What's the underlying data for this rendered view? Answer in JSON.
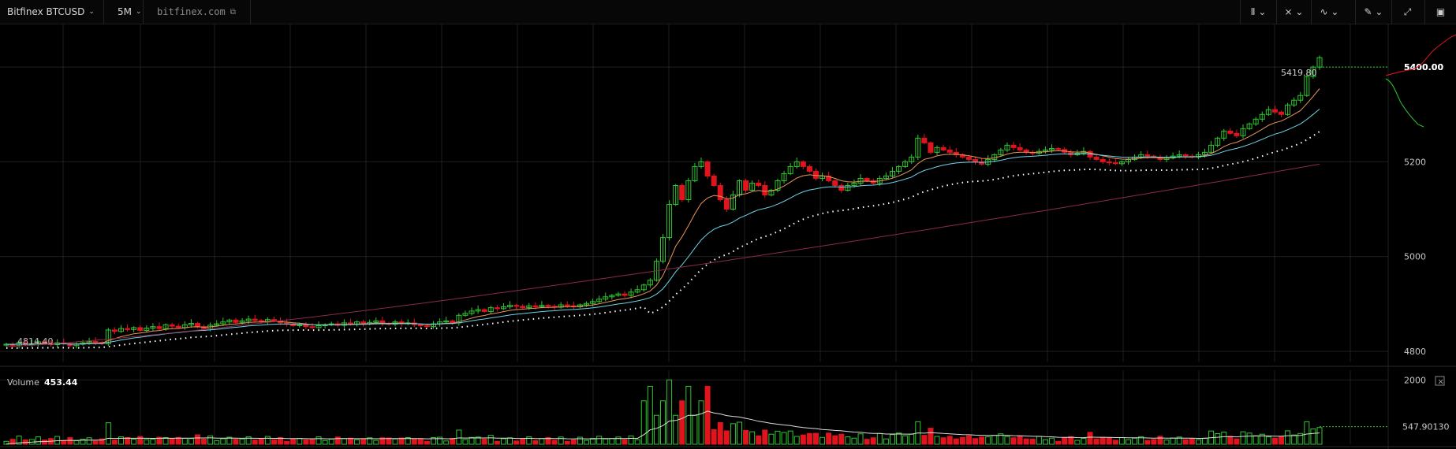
{
  "toolbar": {
    "symbol": "Bitfinex BTCUSD",
    "interval": "5M",
    "site": "bitfinex.com",
    "tools": [
      "bar-type-icon",
      "indicators-icon",
      "compare-icon",
      "drawing-icon",
      "fullscreen-icon",
      "screenshot-icon"
    ]
  },
  "price_panel": {
    "last_price_label": "5419.80",
    "current_price_label": "5400.00",
    "start_price_label": "4814.40"
  },
  "volume_panel": {
    "title": "Volume",
    "value": "453.44",
    "current_label": "547.90130",
    "close_label": "×"
  },
  "colors": {
    "up": "#2ec72e",
    "down": "#e0141c",
    "ema_orange": "#e8955a",
    "ema_cyan": "#6fd3e8",
    "sma_maroon": "#8b2a4a",
    "dots": "#ffffff",
    "grid": "#1f1f1f"
  },
  "chart_data": {
    "type": "candlestick",
    "price_axis": {
      "ticks": [
        "5400.00",
        "5200",
        "5000",
        "4800"
      ],
      "ylim": [
        4780,
        5490
      ]
    },
    "volume_axis": {
      "ticks": [
        "2000",
        "547.90130"
      ],
      "ylim": [
        0,
        2300
      ]
    },
    "candles_close": [
      4815,
      4812,
      4818,
      4814,
      4816,
      4820,
      4817,
      4814,
      4818,
      4816,
      4812,
      4815,
      4818,
      4821,
      4819,
      4816,
      4845,
      4842,
      4848,
      4846,
      4850,
      4844,
      4849,
      4852,
      4848,
      4856,
      4853,
      4850,
      4856,
      4859,
      4852,
      4848,
      4855,
      4858,
      4862,
      4866,
      4861,
      4864,
      4868,
      4865,
      4863,
      4867,
      4864,
      4860,
      4858,
      4854,
      4856,
      4852,
      4850,
      4854,
      4856,
      4858,
      4855,
      4860,
      4857,
      4862,
      4858,
      4861,
      4864,
      4859,
      4857,
      4862,
      4858,
      4860,
      4856,
      4854,
      4852,
      4858,
      4862,
      4864,
      4860,
      4876,
      4880,
      4885,
      4888,
      4884,
      4892,
      4890,
      4894,
      4897,
      4895,
      4892,
      4896,
      4894,
      4897,
      4895,
      4893,
      4898,
      4896,
      4894,
      4898,
      4901,
      4905,
      4910,
      4915,
      4918,
      4921,
      4918,
      4925,
      4930,
      4940,
      4950,
      4990,
      5040,
      5110,
      5150,
      5120,
      5160,
      5190,
      5200,
      5170,
      5150,
      5120,
      5100,
      5130,
      5160,
      5140,
      5155,
      5150,
      5130,
      5140,
      5160,
      5175,
      5190,
      5200,
      5190,
      5180,
      5165,
      5170,
      5160,
      5150,
      5140,
      5150,
      5155,
      5165,
      5160,
      5155,
      5165,
      5170,
      5180,
      5190,
      5200,
      5210,
      5250,
      5240,
      5220,
      5230,
      5225,
      5220,
      5215,
      5210,
      5205,
      5200,
      5195,
      5205,
      5215,
      5225,
      5235,
      5230,
      5225,
      5220,
      5218,
      5222,
      5225,
      5228,
      5226,
      5220,
      5215,
      5218,
      5222,
      5210,
      5205,
      5200,
      5198,
      5196,
      5200,
      5205,
      5210,
      5215,
      5212,
      5210,
      5205,
      5208,
      5212,
      5215,
      5212,
      5210,
      5215,
      5220,
      5235,
      5250,
      5265,
      5260,
      5255,
      5270,
      5280,
      5290,
      5300,
      5310,
      5305,
      5300,
      5320,
      5330,
      5340,
      5380,
      5400,
      5419.8
    ],
    "sma_long_end": 5195,
    "volume_peak": 2000
  }
}
